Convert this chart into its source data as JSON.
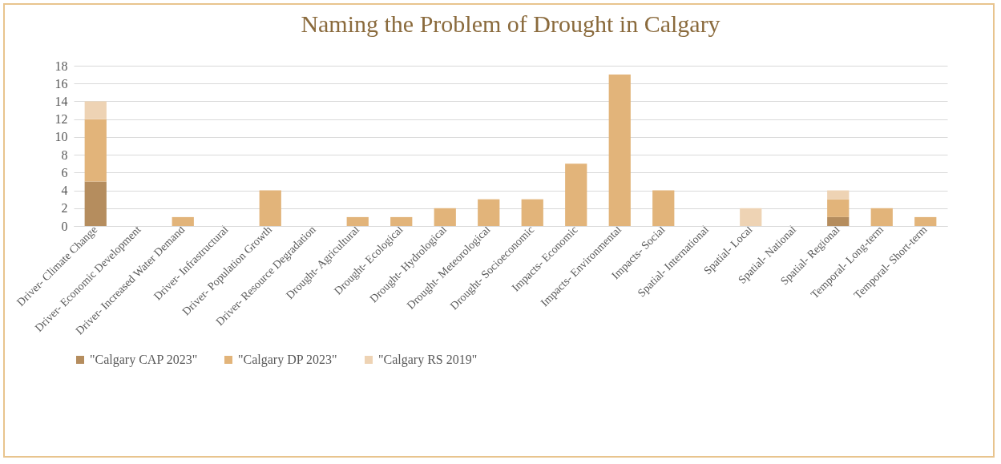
{
  "chart_data": {
    "type": "bar",
    "title": "Naming the Problem of Drought in Calgary",
    "stacked": true,
    "grid": "y",
    "legend": "bottom",
    "categories": [
      "Driver- Climate Change",
      "Driver- Economic Development",
      "Driver- Increased Water Demand",
      "Driver- Infrastructural",
      "Driver- Population Growth",
      "Driver- Resource Degradation",
      "Drought- Agricultural",
      "Drought- Ecological",
      "Drought- Hydrological",
      "Drought- Meteorological",
      "Drought- Socioeconomic",
      "Impacts- Economic",
      "Impacts- Environmental",
      "Impacts- Social",
      "Spatial- International",
      "Spatial- Local",
      "Spatial- National",
      "Spatial- Regional",
      "Temporal- Long-term",
      "Temporal- Short-term"
    ],
    "ylim": [
      0,
      18
    ],
    "yticks": [
      0,
      2,
      4,
      6,
      8,
      10,
      12,
      14,
      16,
      18
    ],
    "series": [
      {
        "name": "\"Calgary CAP 2023\"",
        "color": "#b58d5e",
        "values": [
          5,
          null,
          null,
          null,
          null,
          null,
          null,
          null,
          null,
          null,
          null,
          null,
          null,
          null,
          null,
          null,
          null,
          1,
          null,
          null
        ]
      },
      {
        "name": "\"Calgary DP 2023\"",
        "color": "#e2b47a",
        "values": [
          7,
          null,
          1,
          null,
          4,
          null,
          1,
          1,
          2,
          3,
          3,
          7,
          17,
          4,
          null,
          null,
          null,
          2,
          2,
          1
        ]
      },
      {
        "name": "\"Calgary RS 2019\"",
        "color": "#eed3b4",
        "values": [
          2,
          null,
          null,
          null,
          null,
          null,
          null,
          null,
          null,
          null,
          null,
          null,
          null,
          null,
          null,
          2,
          null,
          1,
          null,
          null
        ]
      }
    ]
  }
}
